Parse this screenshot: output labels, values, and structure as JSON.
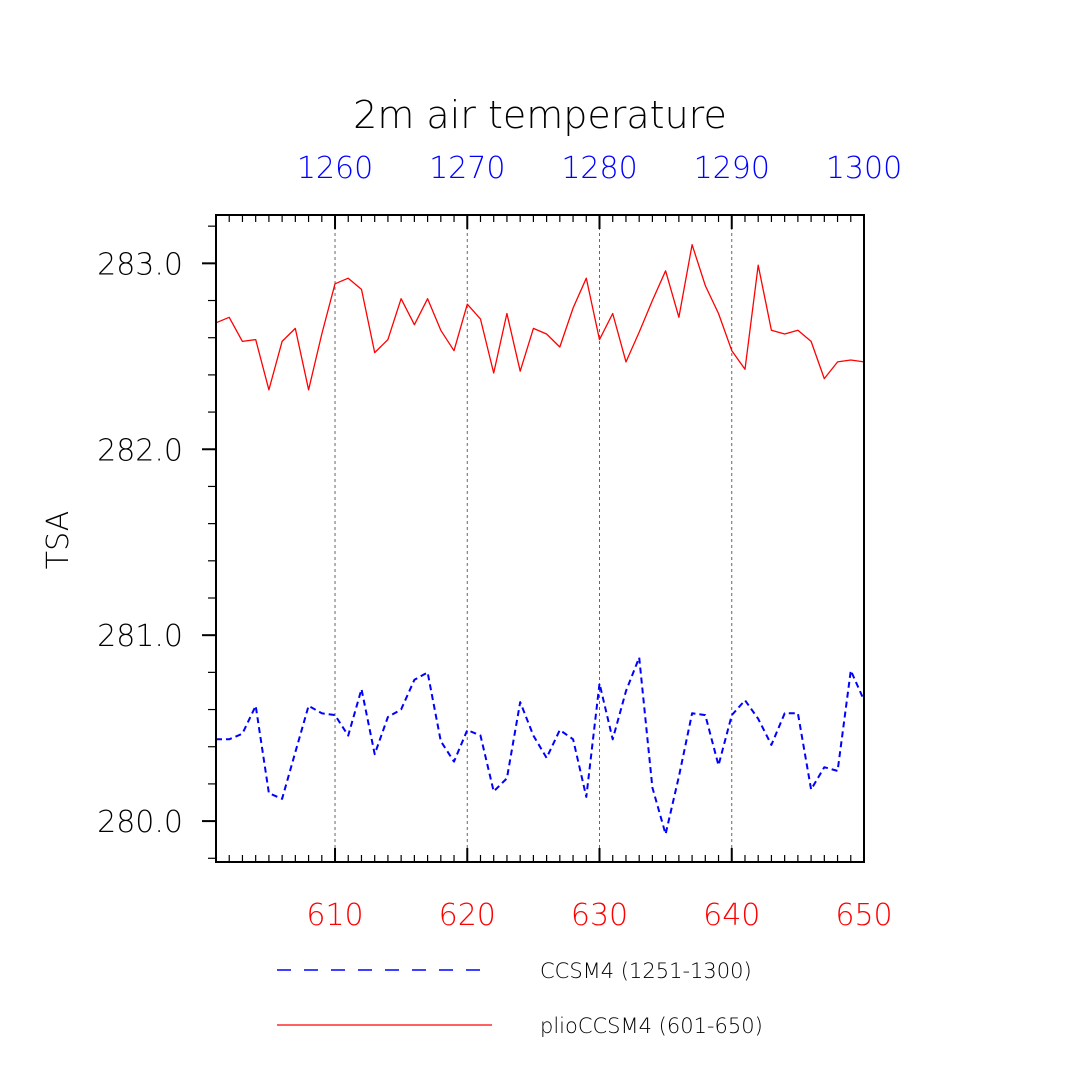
{
  "chart_data": {
    "type": "line",
    "title": "2m air temperature",
    "ylabel": "TSA",
    "ylim": [
      279.78,
      283.26
    ],
    "yticks": [
      280.0,
      281.0,
      282.0,
      283.0
    ],
    "ytick_labels": [
      "280.0",
      "281.0",
      "282.0",
      "283.0"
    ],
    "y_minor_step": 0.2,
    "x_bottom": {
      "range": [
        601,
        650
      ],
      "ticks": [
        610,
        620,
        630,
        640,
        650
      ],
      "tick_labels": [
        "610",
        "620",
        "630",
        "640",
        "650"
      ],
      "color": "#ff0000"
    },
    "x_top": {
      "range": [
        1251,
        1300
      ],
      "ticks": [
        1260,
        1270,
        1280,
        1290,
        1300
      ],
      "tick_labels": [
        "1260",
        "1270",
        "1280",
        "1290",
        "1300"
      ],
      "color": "#0000ff"
    },
    "grid": "vertical dashed at major x ticks",
    "legend_position": "bottom",
    "series": [
      {
        "name": "CCSM4 (1251-1300)",
        "axis": "top",
        "color": "#0000ff",
        "dash": "dashed",
        "x": [
          1251,
          1252,
          1253,
          1254,
          1255,
          1256,
          1257,
          1258,
          1259,
          1260,
          1261,
          1262,
          1263,
          1264,
          1265,
          1266,
          1267,
          1268,
          1269,
          1270,
          1271,
          1272,
          1273,
          1274,
          1275,
          1276,
          1277,
          1278,
          1279,
          1280,
          1281,
          1282,
          1283,
          1284,
          1285,
          1286,
          1287,
          1288,
          1289,
          1290,
          1291,
          1292,
          1293,
          1294,
          1295,
          1296,
          1297,
          1298,
          1299,
          1300
        ],
        "values": [
          280.44,
          280.44,
          280.47,
          280.62,
          280.15,
          280.12,
          280.37,
          280.62,
          280.58,
          280.57,
          280.46,
          280.71,
          280.36,
          280.56,
          280.6,
          280.76,
          280.8,
          280.43,
          280.32,
          280.49,
          280.46,
          280.16,
          280.23,
          280.64,
          280.46,
          280.34,
          280.49,
          280.44,
          280.13,
          280.74,
          280.44,
          280.7,
          280.88,
          280.18,
          279.93,
          280.24,
          280.58,
          280.57,
          280.3,
          280.57,
          280.65,
          280.55,
          280.41,
          280.58,
          280.58,
          280.17,
          280.29,
          280.27,
          280.81,
          280.65
        ]
      },
      {
        "name": "plioCCSM4 (601-650)",
        "axis": "bottom",
        "color": "#ff0000",
        "dash": "solid",
        "x": [
          601,
          602,
          603,
          604,
          605,
          606,
          607,
          608,
          609,
          610,
          611,
          612,
          613,
          614,
          615,
          616,
          617,
          618,
          619,
          620,
          621,
          622,
          623,
          624,
          625,
          626,
          627,
          628,
          629,
          630,
          631,
          632,
          633,
          634,
          635,
          636,
          637,
          638,
          639,
          640,
          641,
          642,
          643,
          644,
          645,
          646,
          647,
          648,
          649,
          650
        ],
        "values": [
          282.68,
          282.71,
          282.58,
          282.59,
          282.32,
          282.58,
          282.65,
          282.32,
          282.62,
          282.89,
          282.92,
          282.86,
          282.52,
          282.59,
          282.81,
          282.67,
          282.81,
          282.64,
          282.53,
          282.78,
          282.7,
          282.41,
          282.73,
          282.42,
          282.65,
          282.62,
          282.55,
          282.76,
          282.92,
          282.59,
          282.73,
          282.47,
          282.63,
          282.8,
          282.96,
          282.71,
          283.1,
          282.88,
          282.73,
          282.53,
          282.43,
          282.99,
          282.64,
          282.62,
          282.64,
          282.58,
          282.38,
          282.47,
          282.48,
          282.47
        ]
      }
    ]
  }
}
